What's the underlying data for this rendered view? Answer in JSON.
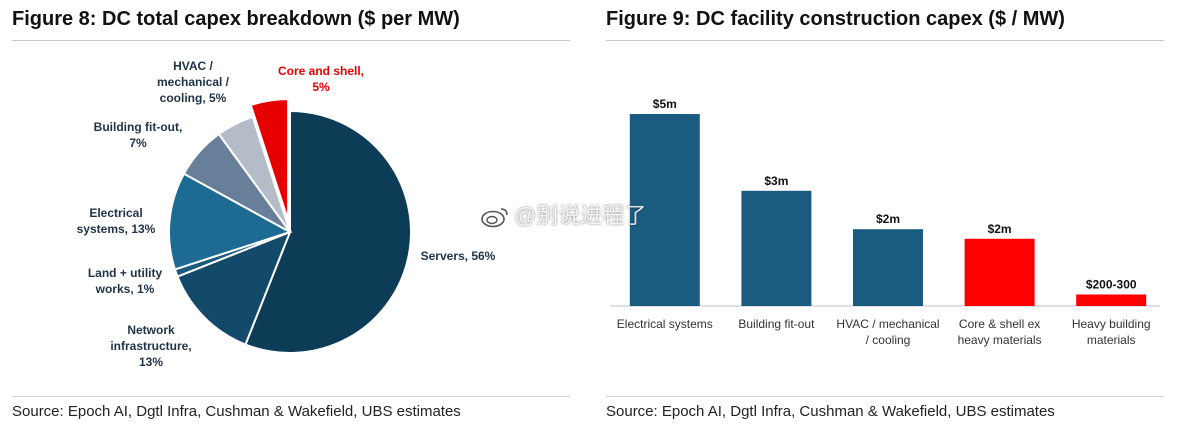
{
  "left": {
    "title": "Figure 8: DC total capex breakdown ($ per MW)",
    "source": "Source: Epoch AI, Dgtl Infra, Cushman & Wakefield, UBS estimates"
  },
  "right": {
    "title": "Figure 9: DC facility construction capex ($ / MW)",
    "source": "Source: Epoch AI, Dgtl Infra, Cushman & Wakefield, UBS estimates"
  },
  "watermark": "@别说进程了",
  "chart_data": [
    {
      "type": "pie",
      "title": "Figure 8: DC total capex breakdown ($ per MW)",
      "start_angle_deg": 0,
      "direction": "clockwise",
      "slices": [
        {
          "label": "Servers, 56%",
          "value": 56,
          "color": "#0d3c57"
        },
        {
          "label": "Network infrastructure, 13%",
          "value": 13,
          "color": "#134a69"
        },
        {
          "label": "Land + utility works, 1%",
          "value": 1,
          "color": "#1b5a7e"
        },
        {
          "label": "Electrical systems, 13%",
          "value": 13,
          "color": "#1d6a93"
        },
        {
          "label": "Building fit-out, 7%",
          "value": 7,
          "color": "#687f99"
        },
        {
          "label": "HVAC / mechanical / cooling, 5%",
          "value": 5,
          "color": "#b3bcc7"
        },
        {
          "label": "Core and shell, 5%",
          "value": 5,
          "color": "#e60000",
          "exploded": true
        }
      ],
      "label_lines": {
        "Servers, 56%": [
          "Servers, 56%"
        ],
        "Network infrastructure, 13%": [
          "Network",
          "infrastructure,",
          "13%"
        ],
        "Land + utility works, 1%": [
          "Land + utility",
          "works, 1%"
        ],
        "Electrical systems, 13%": [
          "Electrical",
          "systems, 13%"
        ],
        "Building fit-out, 7%": [
          "Building fit-out,",
          "7%"
        ],
        "HVAC / mechanical / cooling, 5%": [
          "HVAC /",
          "mechanical /",
          "cooling, 5%"
        ],
        "Core and shell, 5%": [
          "Core and shell,",
          "5%"
        ]
      },
      "highlight_label_color": "#e60000"
    },
    {
      "type": "bar",
      "title": "Figure 9: DC facility construction capex ($ / MW)",
      "categories": [
        "Electrical systems",
        "Building fit-out",
        "HVAC / mechanical / cooling",
        "Core & shell ex heavy materials",
        "Heavy building materials"
      ],
      "category_lines": [
        [
          "Electrical systems"
        ],
        [
          "Building fit-out"
        ],
        [
          "HVAC / mechanical",
          "/ cooling"
        ],
        [
          "Core & shell ex",
          "heavy materials"
        ],
        [
          "Heavy building",
          "materials"
        ]
      ],
      "values": [
        5,
        3,
        2,
        1.75,
        0.3
      ],
      "value_unit": "$m per MW",
      "data_labels": [
        "$5m",
        "$3m",
        "$2m",
        "$2m",
        "$200-300"
      ],
      "colors": [
        "#1a5b80",
        "#1a5b80",
        "#1a5b80",
        "#ff0000",
        "#ff0000"
      ],
      "ylim": [
        0,
        5
      ],
      "grid": false,
      "y_axis_visible": false
    }
  ]
}
